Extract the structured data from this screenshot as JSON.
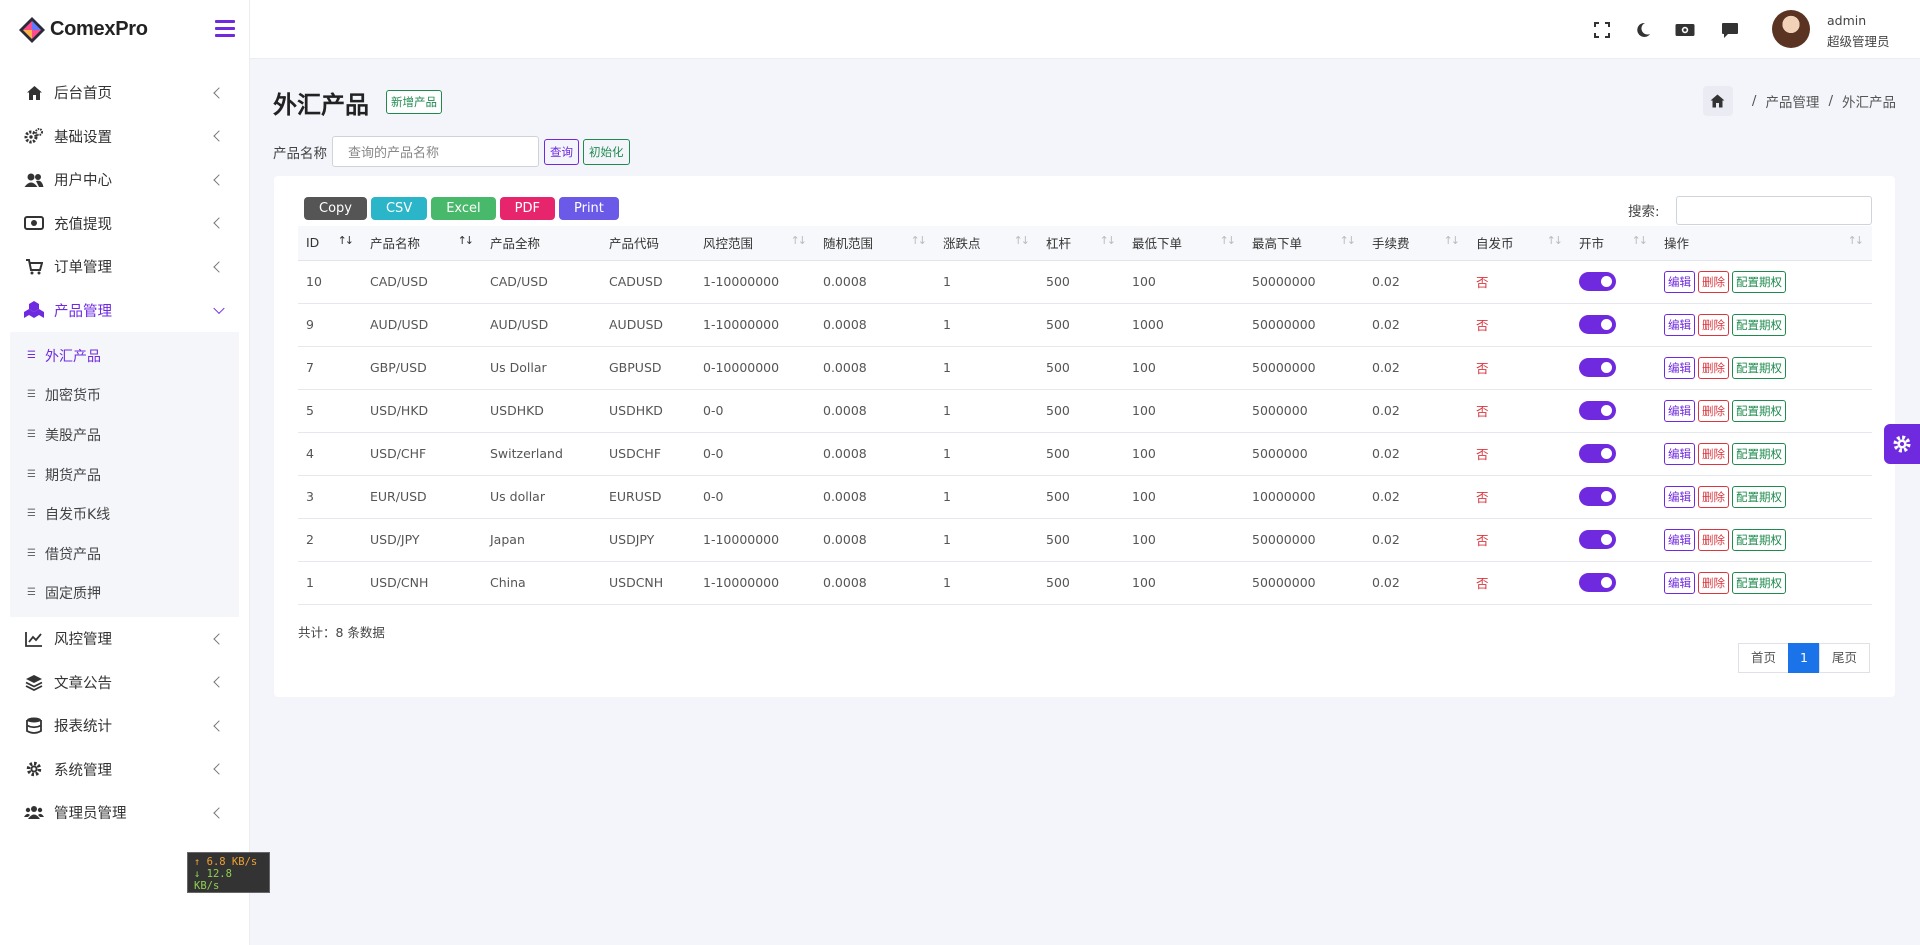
{
  "app": {
    "name": "ComexPro"
  },
  "sidebar": {
    "items": [
      {
        "label": "后台首页",
        "icon": "home-icon"
      },
      {
        "label": "基础设置",
        "icon": "cogs-icon"
      },
      {
        "label": "用户中心",
        "icon": "users-icon"
      },
      {
        "label": "充值提现",
        "icon": "money-icon"
      },
      {
        "label": "订单管理",
        "icon": "cart-icon"
      },
      {
        "label": "产品管理",
        "icon": "cubes-icon",
        "expanded": true
      },
      {
        "label": "风控管理",
        "icon": "chart-line-icon"
      },
      {
        "label": "文章公告",
        "icon": "layers-icon"
      },
      {
        "label": "报表统计",
        "icon": "database-icon"
      },
      {
        "label": "系统管理",
        "icon": "gear-icon"
      },
      {
        "label": "管理员管理",
        "icon": "user-group-icon"
      }
    ],
    "submenu": [
      {
        "label": "外汇产品",
        "active": true
      },
      {
        "label": "加密货币"
      },
      {
        "label": "美股产品"
      },
      {
        "label": "期货产品"
      },
      {
        "label": "自发币K线"
      },
      {
        "label": "借贷产品"
      },
      {
        "label": "固定质押"
      }
    ]
  },
  "netspeed": {
    "up": "↑ 6.8 KB/s",
    "down": "↓ 12.8 KB/s"
  },
  "topbar": {
    "icons": [
      "fullscreen-icon",
      "moon-icon",
      "money-bill-icon",
      "message-icon"
    ],
    "user_name": "admin",
    "user_role": "超级管理员"
  },
  "page": {
    "title": "外汇产品",
    "new_button": "新增产品",
    "breadcrumb": [
      "产品管理",
      "外汇产品"
    ]
  },
  "filter": {
    "label": "产品名称",
    "placeholder": "查询的产品名称",
    "query_button": "查询",
    "init_button": "初始化"
  },
  "export_buttons": [
    {
      "label": "Copy",
      "color": "#555555"
    },
    {
      "label": "CSV",
      "color": "#2bb5c9"
    },
    {
      "label": "Excel",
      "color": "#48b86a"
    },
    {
      "label": "PDF",
      "color": "#e6256c"
    },
    {
      "label": "Print",
      "color": "#6b5ae8"
    }
  ],
  "search_label": "搜索:",
  "table": {
    "headers": [
      "ID",
      "产品名称",
      "产品全称",
      "产品代码",
      "风控范围",
      "随机范围",
      "涨跌点",
      "杠杆",
      "最低下单",
      "最高下单",
      "手续费",
      "自发币",
      "开市",
      "操作"
    ],
    "rows": [
      {
        "id": "10",
        "name": "CAD/USD",
        "fullname": "CAD/USD",
        "code": "CADUSD",
        "risk": "1-10000000",
        "random": "0.0008",
        "points": "1",
        "leverage": "500",
        "min": "100",
        "max": "50000000",
        "fee": "0.02",
        "self_coin": "否"
      },
      {
        "id": "9",
        "name": "AUD/USD",
        "fullname": "AUD/USD",
        "code": "AUDUSD",
        "risk": "1-10000000",
        "random": "0.0008",
        "points": "1",
        "leverage": "500",
        "min": "1000",
        "max": "50000000",
        "fee": "0.02",
        "self_coin": "否"
      },
      {
        "id": "7",
        "name": "GBP/USD",
        "fullname": "Us Dollar",
        "code": "GBPUSD",
        "risk": "0-10000000",
        "random": "0.0008",
        "points": "1",
        "leverage": "500",
        "min": "100",
        "max": "50000000",
        "fee": "0.02",
        "self_coin": "否"
      },
      {
        "id": "5",
        "name": "USD/HKD",
        "fullname": "USDHKD",
        "code": "USDHKD",
        "risk": "0-0",
        "random": "0.0008",
        "points": "1",
        "leverage": "500",
        "min": "100",
        "max": "5000000",
        "fee": "0.02",
        "self_coin": "否"
      },
      {
        "id": "4",
        "name": "USD/CHF",
        "fullname": "Switzerland",
        "code": "USDCHF",
        "risk": "0-0",
        "random": "0.0008",
        "points": "1",
        "leverage": "500",
        "min": "100",
        "max": "5000000",
        "fee": "0.02",
        "self_coin": "否"
      },
      {
        "id": "3",
        "name": "EUR/USD",
        "fullname": "Us dollar",
        "code": "EURUSD",
        "risk": "0-0",
        "random": "0.0008",
        "points": "1",
        "leverage": "500",
        "min": "100",
        "max": "10000000",
        "fee": "0.02",
        "self_coin": "否"
      },
      {
        "id": "2",
        "name": "USD/JPY",
        "fullname": "Japan",
        "code": "USDJPY",
        "risk": "1-10000000",
        "random": "0.0008",
        "points": "1",
        "leverage": "500",
        "min": "100",
        "max": "50000000",
        "fee": "0.02",
        "self_coin": "否"
      },
      {
        "id": "1",
        "name": "USD/CNH",
        "fullname": "China",
        "code": "USDCNH",
        "risk": "1-10000000",
        "random": "0.0008",
        "points": "1",
        "leverage": "500",
        "min": "100",
        "max": "50000000",
        "fee": "0.02",
        "self_coin": "否"
      }
    ],
    "actions": {
      "edit": "编辑",
      "delete": "删除",
      "config": "配置期权"
    }
  },
  "total_text": "共计：8 条数据",
  "pagination": {
    "first": "首页",
    "current": "1",
    "last": "尾页"
  },
  "colors": {
    "accent": "#6f2ae0",
    "success": "#1e8a4e",
    "danger": "#d9363e",
    "page_active": "#1a73e8"
  }
}
